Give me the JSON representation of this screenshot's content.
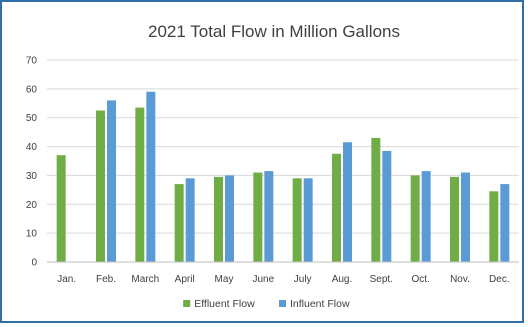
{
  "chart_data": {
    "type": "bar",
    "title": "2021 Total Flow in Million Gallons",
    "categories": [
      "Jan.",
      "Feb.",
      "March",
      "April",
      "May",
      "June",
      "July",
      "Aug.",
      "Sept.",
      "Oct.",
      "Nov.",
      "Dec."
    ],
    "series": [
      {
        "name": "Effluent Flow",
        "color": "#70ad47",
        "values": [
          37,
          52.5,
          53.5,
          27,
          29.5,
          31,
          29,
          37.5,
          43,
          30,
          29.5,
          24.5
        ]
      },
      {
        "name": "Influent Flow",
        "color": "#5b9bd5",
        "values": [
          null,
          56,
          59,
          29,
          30,
          31.5,
          29,
          41.5,
          38.5,
          31.5,
          31,
          27
        ]
      }
    ],
    "ylim": [
      0,
      70
    ],
    "yticks": [
      0,
      10,
      20,
      30,
      40,
      50,
      60,
      70
    ],
    "grid": true,
    "legend_position": "bottom"
  }
}
